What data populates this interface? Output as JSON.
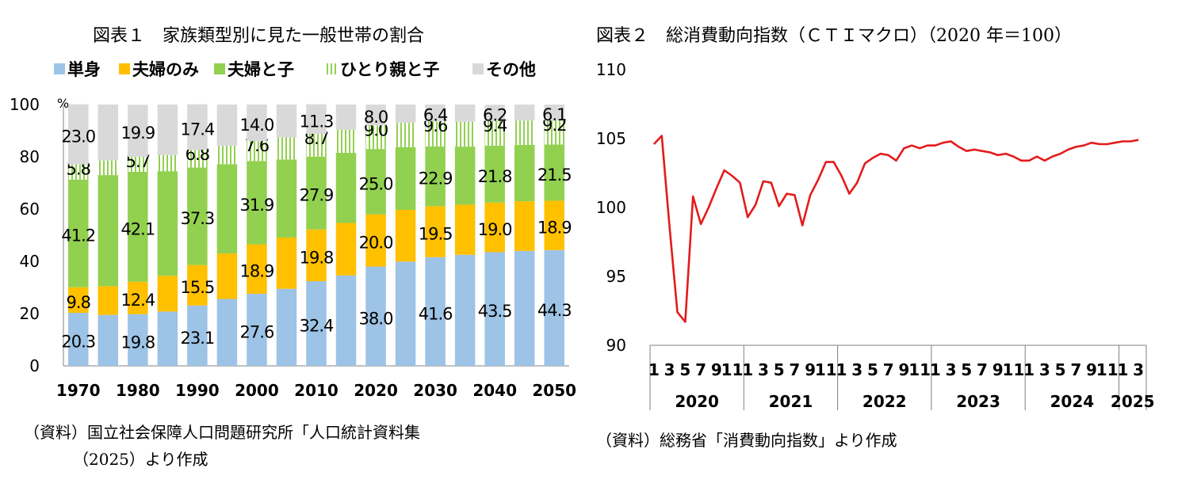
{
  "chart1": {
    "title": "図表１　家族類型別に見た一般世帯の割合",
    "unit": "%",
    "legend": [
      "単身",
      "夫婦のみ",
      "夫婦と子",
      "ひとり親と子",
      "その他"
    ],
    "source_line1": "（資料）国立社会保障人口問題研究所「人口統計資料集",
    "source_line2": "（2025）より作成"
  },
  "chart2": {
    "title": "図表２　総消費動向指数（ＣＴＩマクロ）（2020 年＝100）",
    "source": "（資料）総務省「消費動向指数」より作成"
  },
  "chart_data": [
    {
      "type": "bar",
      "stacked": true,
      "title": "図表１　家族類型別に見た一般世帯の割合",
      "ylabel": "%",
      "ylim": [
        0,
        100
      ],
      "yticks": [
        "0",
        "20",
        "40",
        "60",
        "80",
        "100"
      ],
      "categories": [
        "1970",
        "1975",
        "1980",
        "1985",
        "1990",
        "1995",
        "2000",
        "2005",
        "2010",
        "2015",
        "2020",
        "2025",
        "2030",
        "2035",
        "2040",
        "2045",
        "2050"
      ],
      "xtick_labels": [
        "1970",
        "",
        "1980",
        "",
        "1990",
        "",
        "2000",
        "",
        "2010",
        "",
        "2020",
        "",
        "2030",
        "",
        "2040",
        "",
        "2050"
      ],
      "series": [
        {
          "name": "単身",
          "color": "#9DC3E6",
          "values": [
            20.3,
            19.5,
            19.8,
            20.8,
            23.1,
            25.6,
            27.6,
            29.5,
            32.4,
            34.6,
            38.0,
            39.9,
            41.6,
            42.5,
            43.5,
            44.0,
            44.3
          ],
          "labels": [
            "20.3",
            "",
            "19.8",
            "",
            "23.1",
            "",
            "27.6",
            "",
            "32.4",
            "",
            "38.0",
            "",
            "41.6",
            "",
            "43.5",
            "",
            "44.3"
          ]
        },
        {
          "name": "夫婦のみ",
          "color": "#FFC000",
          "values": [
            9.8,
            11.0,
            12.4,
            13.7,
            15.5,
            17.4,
            18.9,
            19.6,
            19.8,
            20.1,
            20.0,
            19.8,
            19.5,
            19.2,
            19.0,
            19.0,
            18.9
          ],
          "labels": [
            "9.8",
            "",
            "12.4",
            "",
            "15.5",
            "",
            "18.9",
            "",
            "19.8",
            "",
            "20.0",
            "",
            "19.5",
            "",
            "19.0",
            "",
            "18.9"
          ]
        },
        {
          "name": "夫婦と子",
          "color": "#92D050",
          "values": [
            41.2,
            42.5,
            42.1,
            40.0,
            37.3,
            34.2,
            31.9,
            29.9,
            27.9,
            26.8,
            25.0,
            24.0,
            22.9,
            22.2,
            21.8,
            21.6,
            21.5
          ],
          "labels": [
            "41.2",
            "",
            "42.1",
            "",
            "37.3",
            "",
            "31.9",
            "",
            "27.9",
            "",
            "25.0",
            "",
            "22.9",
            "",
            "21.8",
            "",
            "21.5"
          ]
        },
        {
          "name": "ひとり親と子",
          "color": "#92D050",
          "hatched": true,
          "values": [
            5.8,
            5.6,
            5.7,
            6.2,
            6.8,
            7.1,
            7.6,
            8.4,
            8.7,
            8.9,
            9.0,
            9.3,
            9.6,
            9.5,
            9.4,
            9.3,
            9.2
          ],
          "labels": [
            "5.8",
            "",
            "5.7",
            "",
            "6.8",
            "",
            "7.6",
            "",
            "8.7",
            "",
            "9.0",
            "",
            "9.6",
            "",
            "9.4",
            "",
            "9.2"
          ]
        },
        {
          "name": "その他",
          "color": "#D9D9D9",
          "values": [
            23.0,
            21.4,
            19.9,
            19.3,
            17.4,
            15.7,
            14.0,
            12.6,
            11.3,
            9.6,
            8.0,
            7.0,
            6.4,
            6.6,
            6.2,
            6.1,
            6.1
          ],
          "labels": [
            "23.0",
            "",
            "19.9",
            "",
            "17.4",
            "",
            "14.0",
            "",
            "11.3",
            "",
            "8.0",
            "",
            "6.4",
            "",
            "6.2",
            "",
            "6.1"
          ]
        }
      ]
    },
    {
      "type": "line",
      "title": "図表２　総消費動向指数（ＣＴＩマクロ）（2020 年＝100）",
      "ylim": [
        90,
        110
      ],
      "yticks": [
        "90",
        "95",
        "100",
        "105",
        "110"
      ],
      "month_labels": [
        "1",
        "3",
        "5",
        "7",
        "9",
        "11"
      ],
      "month_labels_last": [
        "1",
        "3"
      ],
      "years": [
        "2020",
        "2021",
        "2022",
        "2023",
        "2024",
        "2025"
      ],
      "grid": false,
      "series": [
        {
          "color": "#E31B1B",
          "x_months": 63,
          "values": [
            104.6,
            105.2,
            98.6,
            92.4,
            91.7,
            100.8,
            98.8,
            100.0,
            101.4,
            102.7,
            102.3,
            101.8,
            99.3,
            100.2,
            101.9,
            101.8,
            100.1,
            101.0,
            100.9,
            98.7,
            100.9,
            102.0,
            103.3,
            103.3,
            102.3,
            101.0,
            101.8,
            103.2,
            103.6,
            103.9,
            103.8,
            103.4,
            104.3,
            104.5,
            104.3,
            104.5,
            104.5,
            104.7,
            104.8,
            104.4,
            104.1,
            104.2,
            104.1,
            104.0,
            103.8,
            103.9,
            103.7,
            103.4,
            103.4,
            103.7,
            103.4,
            103.7,
            103.9,
            104.2,
            104.4,
            104.5,
            104.7,
            104.6,
            104.6,
            104.7,
            104.8,
            104.8,
            104.9
          ]
        }
      ]
    }
  ]
}
